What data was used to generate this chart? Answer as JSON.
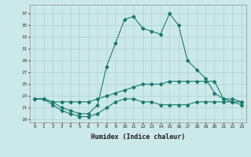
{
  "title": "",
  "xlabel": "Humidex (Indice chaleur)",
  "ylabel": "",
  "bg_color": "#cce9e9",
  "grid_color": "#afd4d4",
  "line_color": "#1a7a6e",
  "xlim": [
    -0.5,
    23.5
  ],
  "ylim": [
    18.5,
    38.5
  ],
  "xticks": [
    0,
    1,
    2,
    3,
    4,
    5,
    6,
    7,
    8,
    9,
    10,
    11,
    12,
    13,
    14,
    15,
    16,
    17,
    18,
    19,
    20,
    21,
    22,
    23
  ],
  "yticks": [
    19,
    21,
    23,
    25,
    27,
    29,
    31,
    33,
    35,
    37
  ],
  "series1_x": [
    0,
    1,
    2,
    3,
    4,
    5,
    6,
    7,
    8,
    9,
    10,
    11,
    12,
    13,
    14,
    15,
    16,
    17,
    18,
    19,
    20,
    21,
    22,
    23
  ],
  "series1_y": [
    22.5,
    22.5,
    21.5,
    20.5,
    20.0,
    19.5,
    19.5,
    20.0,
    21.0,
    22.0,
    22.5,
    22.5,
    22.0,
    22.0,
    21.5,
    21.5,
    21.5,
    21.5,
    22.0,
    22.0,
    22.0,
    22.0,
    22.0,
    21.5
  ],
  "series2_x": [
    0,
    1,
    2,
    3,
    4,
    5,
    6,
    7,
    8,
    9,
    10,
    11,
    12,
    13,
    14,
    15,
    16,
    17,
    18,
    19,
    20,
    21,
    22,
    23
  ],
  "series2_y": [
    22.5,
    22.5,
    22.0,
    22.0,
    22.0,
    22.0,
    22.0,
    22.5,
    23.0,
    23.5,
    24.0,
    24.5,
    25.0,
    25.0,
    25.0,
    25.5,
    25.5,
    25.5,
    25.5,
    25.5,
    25.5,
    22.5,
    22.5,
    22.0
  ],
  "series3_x": [
    0,
    1,
    2,
    3,
    4,
    5,
    6,
    7,
    8,
    9,
    10,
    11,
    12,
    13,
    14,
    15,
    16,
    17,
    18,
    19,
    20,
    21,
    22,
    23
  ],
  "series3_y": [
    22.5,
    22.5,
    22.0,
    21.0,
    20.5,
    20.0,
    20.0,
    21.5,
    28.0,
    32.0,
    36.0,
    36.5,
    34.5,
    34.0,
    33.5,
    37.0,
    35.0,
    29.0,
    27.5,
    26.0,
    23.5,
    22.5,
    22.0,
    22.0
  ]
}
